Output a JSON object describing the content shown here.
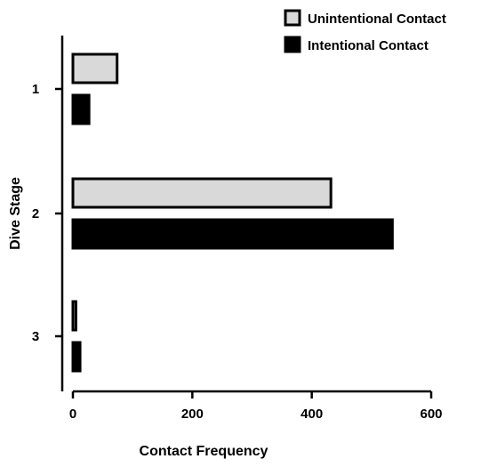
{
  "chart_data": {
    "type": "bar",
    "orientation": "horizontal",
    "categories": [
      "1",
      "2",
      "3"
    ],
    "series": [
      {
        "name": "Unintentional Contact",
        "values": [
          74,
          432,
          5
        ],
        "color": "#d9d9d9"
      },
      {
        "name": "Intentional Contact",
        "values": [
          27,
          535,
          12
        ],
        "color": "#000000"
      }
    ],
    "xlabel": "Contact Frequency",
    "ylabel": "Dive Stage",
    "xlim": [
      0,
      600
    ],
    "xticks": [
      0,
      200,
      400,
      600
    ],
    "legend_position": "top-right",
    "grid": false
  }
}
